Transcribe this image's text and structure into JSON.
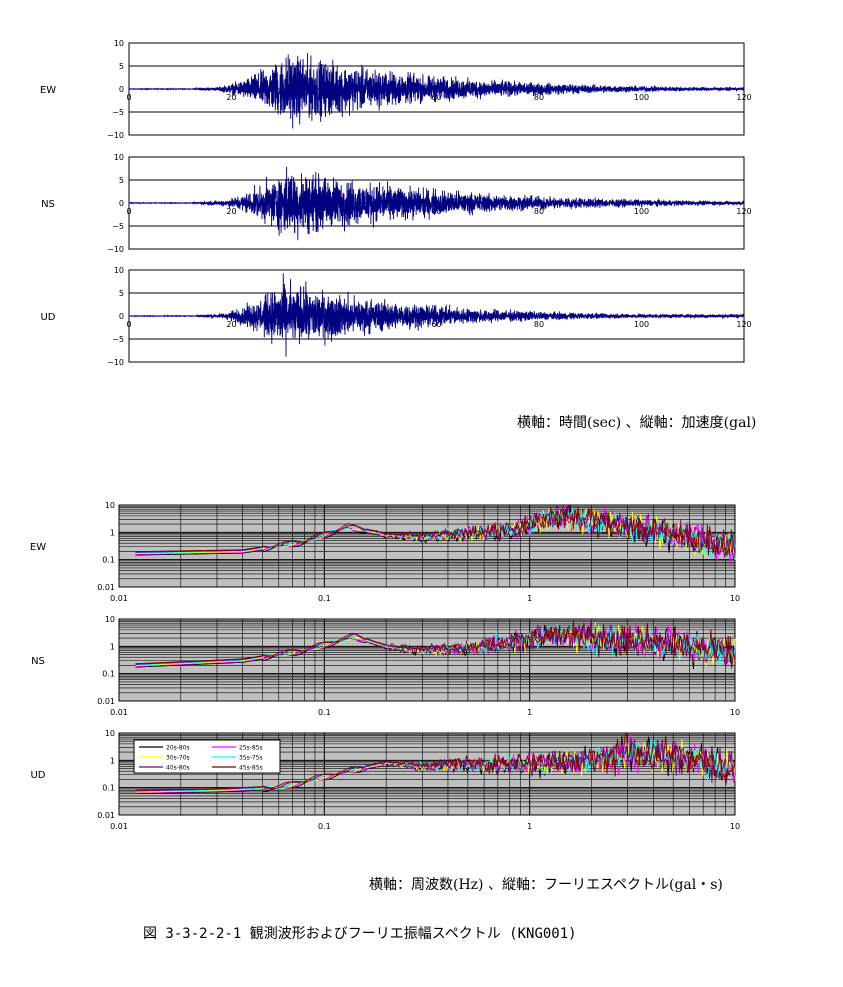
{
  "chart_data": [
    {
      "type": "line",
      "name": "EW",
      "component": "EW",
      "xlim": [
        0,
        120
      ],
      "ylim": [
        -10,
        10
      ],
      "x_ticks": [
        "0",
        "20",
        "40",
        "60",
        "80",
        "100",
        "120"
      ],
      "y_ticks": [
        "10",
        "5",
        "0",
        "−5",
        "−10"
      ],
      "envelope": {
        "onset_s": 12,
        "peak_s": 31,
        "peak_amplitude": 6.4,
        "decay_s": 28,
        "coda_amplitude": 0.3
      },
      "color": "#000080"
    },
    {
      "type": "line",
      "name": "NS",
      "component": "NS",
      "xlim": [
        0,
        120
      ],
      "ylim": [
        -10,
        10
      ],
      "x_ticks": [
        "0",
        "20",
        "40",
        "60",
        "80",
        "100",
        "120"
      ],
      "y_ticks": [
        "10",
        "5",
        "0",
        "−5",
        "−10"
      ],
      "envelope": {
        "onset_s": 12,
        "peak_s": 31,
        "peak_amplitude": 6.2,
        "decay_s": 30,
        "coda_amplitude": 0.4
      },
      "color": "#000080"
    },
    {
      "type": "line",
      "name": "UD",
      "component": "UD",
      "xlim": [
        0,
        120
      ],
      "ylim": [
        -10,
        10
      ],
      "x_ticks": [
        "0",
        "20",
        "40",
        "60",
        "80",
        "100",
        "120"
      ],
      "y_ticks": [
        "10",
        "5",
        "0",
        "−5",
        "−10"
      ],
      "envelope": {
        "onset_s": 12.5,
        "peak_s": 30,
        "peak_amplitude": 6.0,
        "decay_s": 25,
        "coda_amplitude": 0.35
      },
      "color": "#000080"
    },
    {
      "type": "line",
      "name": "EW",
      "component": "EW",
      "x_scale": "log",
      "y_scale": "log",
      "xlim": [
        0.01,
        10
      ],
      "ylim": [
        0.01,
        10
      ],
      "x_ticks": [
        "0.01",
        "0.1",
        "1",
        "10"
      ],
      "y_ticks": [
        "10",
        "1",
        "0.1",
        "0.01"
      ],
      "background": "#c0c0c0",
      "x_range": [
        0.012,
        10
      ],
      "knots": [
        [
          0.012,
          0.17
        ],
        [
          0.04,
          0.2
        ],
        [
          0.08,
          0.45
        ],
        [
          0.13,
          1.6
        ],
        [
          0.2,
          0.8
        ],
        [
          0.3,
          0.7
        ],
        [
          0.5,
          0.9
        ],
        [
          0.8,
          1.1
        ],
        [
          1.3,
          4
        ],
        [
          2,
          2.5
        ],
        [
          4,
          1.2
        ],
        [
          7,
          0.5
        ],
        [
          10,
          0.3
        ]
      ],
      "series": [
        {
          "name": "20s-80s",
          "color": "#000000"
        },
        {
          "name": "25s-85s",
          "color": "#ff00ff"
        },
        {
          "name": "30s-70s",
          "color": "#ffff00"
        },
        {
          "name": "35s-75s",
          "color": "#00ffff"
        },
        {
          "name": "40s-80s",
          "color": "#800080"
        },
        {
          "name": "45s-85s",
          "color": "#800000"
        }
      ]
    },
    {
      "type": "line",
      "name": "NS",
      "component": "NS",
      "x_scale": "log",
      "y_scale": "log",
      "xlim": [
        0.01,
        10
      ],
      "ylim": [
        0.01,
        10
      ],
      "x_ticks": [
        "0.01",
        "0.1",
        "1",
        "10"
      ],
      "y_ticks": [
        "10",
        "1",
        "0.1",
        "0.01"
      ],
      "background": "#c0c0c0",
      "x_range": [
        0.012,
        10
      ],
      "knots": [
        [
          0.012,
          0.2
        ],
        [
          0.04,
          0.3
        ],
        [
          0.08,
          0.7
        ],
        [
          0.14,
          2.3
        ],
        [
          0.2,
          1.0
        ],
        [
          0.3,
          0.7
        ],
        [
          0.5,
          0.9
        ],
        [
          0.8,
          1.3
        ],
        [
          1.3,
          2.7
        ],
        [
          2,
          2.2
        ],
        [
          4,
          1.4
        ],
        [
          7,
          0.8
        ],
        [
          10,
          0.6
        ]
      ],
      "series": [
        {
          "name": "20s-80s",
          "color": "#000000"
        },
        {
          "name": "25s-85s",
          "color": "#ff00ff"
        },
        {
          "name": "30s-70s",
          "color": "#ffff00"
        },
        {
          "name": "35s-75s",
          "color": "#00ffff"
        },
        {
          "name": "40s-80s",
          "color": "#800080"
        },
        {
          "name": "45s-85s",
          "color": "#800000"
        }
      ]
    },
    {
      "type": "line",
      "name": "UD",
      "component": "UD",
      "x_scale": "log",
      "y_scale": "log",
      "xlim": [
        0.01,
        10
      ],
      "ylim": [
        0.01,
        10
      ],
      "x_ticks": [
        "0.01",
        "0.1",
        "1",
        "10"
      ],
      "y_ticks": [
        "10",
        "1",
        "0.1",
        "0.01"
      ],
      "background": "#c0c0c0",
      "x_range": [
        0.012,
        10
      ],
      "knots": [
        [
          0.012,
          0.07
        ],
        [
          0.03,
          0.08
        ],
        [
          0.06,
          0.1
        ],
        [
          0.1,
          0.25
        ],
        [
          0.2,
          0.8
        ],
        [
          0.3,
          0.6
        ],
        [
          0.5,
          0.7
        ],
        [
          1,
          0.7
        ],
        [
          2,
          1.0
        ],
        [
          3,
          1.9
        ],
        [
          5,
          1.5
        ],
        [
          10,
          0.5
        ]
      ],
      "legend": {
        "placement": "upper-left",
        "entries": [
          "20s-80s",
          "25s-85s",
          "30s-70s",
          "35s-75s",
          "40s-80s",
          "45s-85s"
        ]
      },
      "series": [
        {
          "name": "20s-80s",
          "color": "#000000"
        },
        {
          "name": "25s-85s",
          "color": "#ff00ff"
        },
        {
          "name": "30s-70s",
          "color": "#ffff00"
        },
        {
          "name": "35s-75s",
          "color": "#00ffff"
        },
        {
          "name": "40s-80s",
          "color": "#800080"
        },
        {
          "name": "45s-85s",
          "color": "#800000"
        }
      ]
    }
  ],
  "captions": {
    "time": "横軸：時間(sec) 、縦軸：加速度(gal)",
    "freq": "横軸：周波数(Hz) 、縦軸：フーリエスペクトル(gal・s)",
    "figure": "図 3-3-2-2-1 観測波形およびフーリエ振幅スペクトル (KNG001)"
  }
}
